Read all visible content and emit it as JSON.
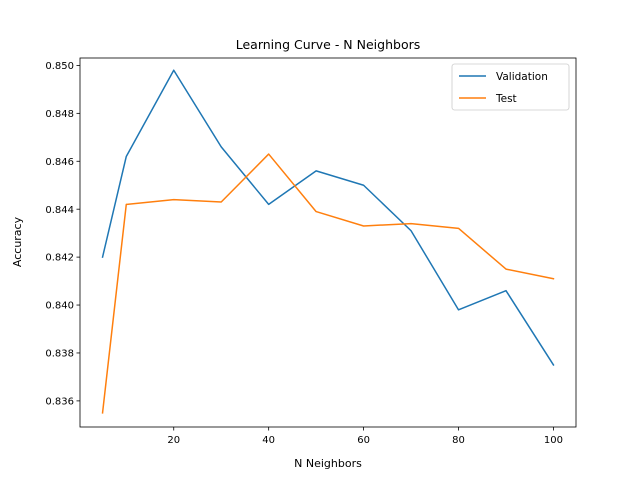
{
  "chart_data": {
    "type": "line",
    "title": "Learning Curve - N Neighbors",
    "xlabel": "N Neighbors",
    "ylabel": "Accuracy",
    "x": [
      5,
      10,
      20,
      30,
      40,
      50,
      60,
      70,
      80,
      90,
      100
    ],
    "xlim": [
      0.25,
      104.75
    ],
    "ylim": [
      0.83491,
      0.85031
    ],
    "xticks": [
      20,
      40,
      60,
      80,
      100
    ],
    "xtick_labels": [
      "20",
      "40",
      "60",
      "80",
      "100"
    ],
    "yticks": [
      0.836,
      0.838,
      0.84,
      0.842,
      0.844,
      0.846,
      0.848,
      0.85
    ],
    "ytick_labels": [
      "0.836",
      "0.838",
      "0.840",
      "0.842",
      "0.844",
      "0.846",
      "0.848",
      "0.850"
    ],
    "grid": false,
    "legend_position": "top-right",
    "series": [
      {
        "name": "Validation",
        "color": "#1f77b4",
        "values": [
          0.842,
          0.8462,
          0.8498,
          0.8466,
          0.8442,
          0.8456,
          0.845,
          0.8431,
          0.8398,
          0.8406,
          0.8375
        ]
      },
      {
        "name": "Test",
        "color": "#ff7f0e",
        "values": [
          0.8355,
          0.8442,
          0.8444,
          0.8443,
          0.8463,
          0.8439,
          0.8433,
          0.8434,
          0.8432,
          0.8415,
          0.8411
        ]
      }
    ]
  }
}
